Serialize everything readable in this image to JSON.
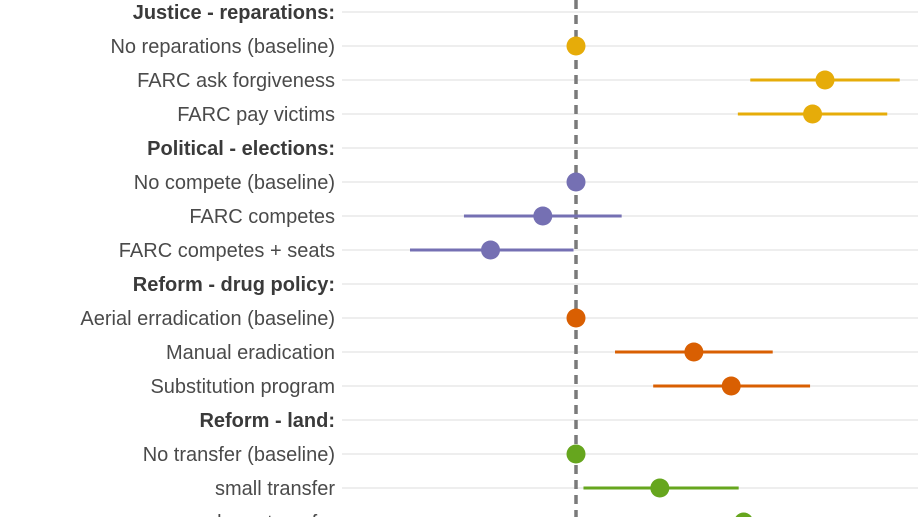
{
  "colors": {
    "reparations": "#e6ac09",
    "elections": "#7570b3",
    "drug": "#d95f02",
    "land": "#66a61e",
    "zero_line": "#7a7a7a",
    "grid": "#dcdcdc",
    "text": "#4a4a4a"
  },
  "chart_data": {
    "type": "scatter",
    "subtype": "coefficient plot with confidence intervals",
    "reference_line": 0,
    "xlim": [
      -0.31,
      0.4
    ],
    "grid": true,
    "rows": [
      {
        "label": "Justice - reparations:",
        "header": true
      },
      {
        "label": "No reparations (baseline)",
        "group": "reparations",
        "est": 0,
        "lo": null,
        "hi": null
      },
      {
        "label": "FARC ask forgiveness",
        "group": "reparations",
        "est": 0.3,
        "lo": 0.21,
        "hi": 0.39
      },
      {
        "label": "FARC pay victims",
        "group": "reparations",
        "est": 0.285,
        "lo": 0.195,
        "hi": 0.375
      },
      {
        "label": "Political - elections:",
        "header": true
      },
      {
        "label": "No compete (baseline)",
        "group": "elections",
        "est": 0,
        "lo": null,
        "hi": null
      },
      {
        "label": "FARC competes",
        "group": "elections",
        "est": -0.04,
        "lo": -0.135,
        "hi": 0.055
      },
      {
        "label": "FARC competes + seats",
        "group": "elections",
        "est": -0.103,
        "lo": -0.2,
        "hi": -0.003
      },
      {
        "label": "Reform - drug policy:",
        "header": true
      },
      {
        "label": "Aerial erradication (baseline)",
        "group": "drug",
        "est": 0,
        "lo": null,
        "hi": null
      },
      {
        "label": "Manual eradication",
        "group": "drug",
        "est": 0.142,
        "lo": 0.047,
        "hi": 0.237
      },
      {
        "label": "Substitution program",
        "group": "drug",
        "est": 0.187,
        "lo": 0.093,
        "hi": 0.282
      },
      {
        "label": "Reform - land:",
        "header": true
      },
      {
        "label": "No transfer (baseline)",
        "group": "land",
        "est": 0,
        "lo": null,
        "hi": null
      },
      {
        "label": "small transfer",
        "group": "land",
        "est": 0.101,
        "lo": 0.009,
        "hi": 0.196
      },
      {
        "label": "large transfer",
        "group": "land",
        "est": 0.202,
        "lo": null,
        "hi": null
      }
    ]
  }
}
